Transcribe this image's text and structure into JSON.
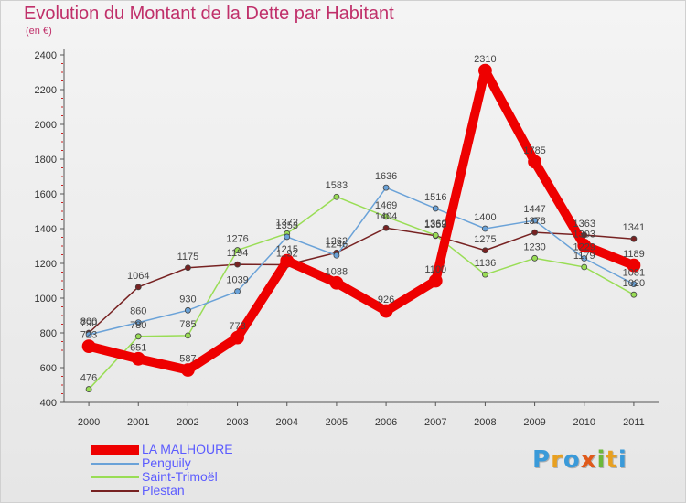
{
  "title": "Evolution du Montant de la Dette par Habitant",
  "unit": "(en €)",
  "brand": {
    "letters": [
      {
        "ch": "P",
        "color": "#3a9ad9"
      },
      {
        "ch": "r",
        "color": "#e8a020"
      },
      {
        "ch": "o",
        "color": "#3a9ad9"
      },
      {
        "ch": "x",
        "color": "#e05a1a"
      },
      {
        "ch": "i",
        "color": "#6cb83a"
      },
      {
        "ch": "t",
        "color": "#e8a020"
      },
      {
        "ch": "i",
        "color": "#3a9ad9"
      }
    ]
  },
  "chart_data": {
    "type": "line",
    "x": [
      "2000",
      "2001",
      "2002",
      "2003",
      "2004",
      "2005",
      "2006",
      "2007",
      "2008",
      "2009",
      "2010",
      "2011"
    ],
    "ylim": [
      400,
      2400
    ],
    "yticks": [
      "400",
      "600",
      "800",
      "1000",
      "1200",
      "1400",
      "1600",
      "1800",
      "2000",
      "2200",
      "2400"
    ],
    "grid": false,
    "legend_position": "bottom-left",
    "series": [
      {
        "name": "LA MALHOURE",
        "color": "#ee0000",
        "width": 10,
        "values": [
          723,
          651,
          587,
          773,
          1215,
          1088,
          926,
          1100,
          2310,
          1785,
          1303,
          1189
        ],
        "labels": [
          "723",
          "651",
          "587",
          "773",
          "1215",
          "1088",
          "926",
          "1100",
          "2310",
          "1785",
          "1303",
          "1189"
        ]
      },
      {
        "name": "Penguily",
        "color": "#6aa2d8",
        "width": 1.5,
        "values": [
          790,
          860,
          930,
          1039,
          1353,
          1246,
          1636,
          1516,
          1400,
          1447,
          1229,
          1081
        ],
        "labels": [
          "790",
          "860",
          "930",
          "1039",
          "1353",
          "1246",
          "1636",
          "1516",
          "1400",
          "1447",
          "1229",
          "1081"
        ]
      },
      {
        "name": "Saint-Trimoël",
        "color": "#99dd55",
        "width": 1.5,
        "values": [
          476,
          780,
          785,
          1276,
          1372,
          1583,
          1469,
          1362,
          1136,
          1230,
          1179,
          1020
        ],
        "labels": [
          "476",
          "780",
          "785",
          "1276",
          "1372",
          "1583",
          "1469",
          "1362",
          "1136",
          "1230",
          "1179",
          "1020"
        ]
      },
      {
        "name": "Plestan",
        "color": "#772222",
        "width": 1.5,
        "values": [
          800,
          1064,
          1175,
          1194,
          1192,
          1262,
          1404,
          1359,
          1275,
          1378,
          1363,
          1341
        ],
        "labels": [
          "800",
          "1064",
          "1175",
          "1194",
          "1192",
          "1262",
          "1404",
          "1359",
          "1275",
          "1378",
          "1363",
          "1341"
        ]
      }
    ]
  }
}
